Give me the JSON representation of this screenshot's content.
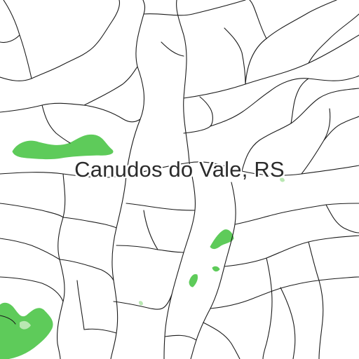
{
  "map": {
    "place_label": "Canudos do Vale, RS",
    "colors": {
      "background": "#ffffff",
      "rivers": "#1a1a1a",
      "vegetation": "#5ecb5a",
      "vegetation_light": "#b9e7b2",
      "label": "#2b2b2b"
    }
  }
}
